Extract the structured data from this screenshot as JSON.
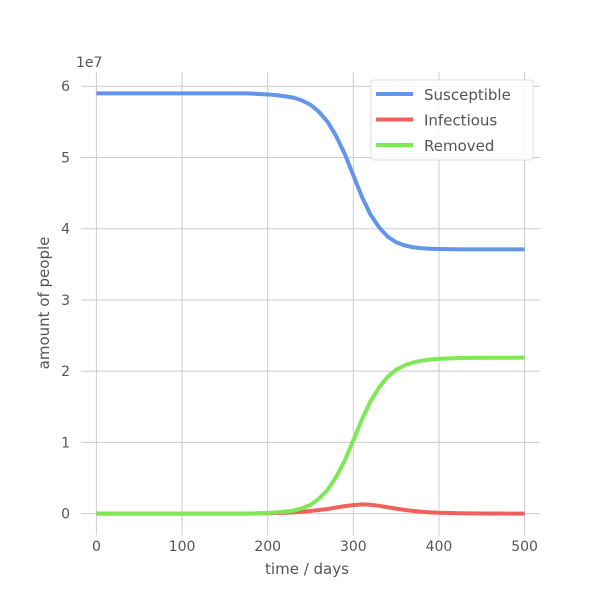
{
  "chart_data": {
    "type": "line",
    "xlabel": "time / days",
    "ylabel": "amount of people",
    "y_offset_label": "1e7",
    "xlim": [
      -18,
      518
    ],
    "ylim": [
      -0.3,
      6.2
    ],
    "x_ticks": [
      0,
      100,
      200,
      300,
      400,
      500
    ],
    "y_ticks": [
      0,
      1,
      2,
      3,
      4,
      5,
      6
    ],
    "grid": true,
    "legend_position": "top-right",
    "x": [
      0,
      25,
      50,
      75,
      100,
      125,
      150,
      175,
      200,
      210,
      220,
      230,
      240,
      250,
      260,
      270,
      280,
      290,
      300,
      310,
      320,
      330,
      340,
      350,
      360,
      370,
      380,
      390,
      400,
      425,
      450,
      475,
      500
    ],
    "series": [
      {
        "name": "Susceptible",
        "color": "#6495ed",
        "values": [
          5.9,
          5.9,
          5.9,
          5.9,
          5.9,
          5.9,
          5.9,
          5.9,
          5.885,
          5.875,
          5.86,
          5.84,
          5.8,
          5.74,
          5.64,
          5.5,
          5.3,
          5.05,
          4.75,
          4.45,
          4.2,
          4.02,
          3.89,
          3.81,
          3.765,
          3.74,
          3.725,
          3.718,
          3.715,
          3.71,
          3.71,
          3.71,
          3.71
        ]
      },
      {
        "name": "Infectious",
        "color": "#f0605d",
        "values": [
          0,
          0,
          0,
          0,
          0,
          0,
          0,
          0,
          0.005,
          0.008,
          0.012,
          0.018,
          0.026,
          0.037,
          0.05,
          0.065,
          0.085,
          0.105,
          0.12,
          0.13,
          0.125,
          0.11,
          0.09,
          0.07,
          0.052,
          0.037,
          0.026,
          0.018,
          0.012,
          0.005,
          0.002,
          0.001,
          0
        ]
      },
      {
        "name": "Removed",
        "color": "#7fe857",
        "values": [
          0,
          0,
          0,
          0,
          0,
          0,
          0,
          0,
          0.01,
          0.017,
          0.028,
          0.042,
          0.074,
          0.123,
          0.21,
          0.335,
          0.515,
          0.745,
          1.03,
          1.32,
          1.575,
          1.77,
          1.92,
          2.02,
          2.083,
          2.123,
          2.149,
          2.164,
          2.173,
          2.185,
          2.188,
          2.189,
          2.19
        ]
      }
    ]
  }
}
